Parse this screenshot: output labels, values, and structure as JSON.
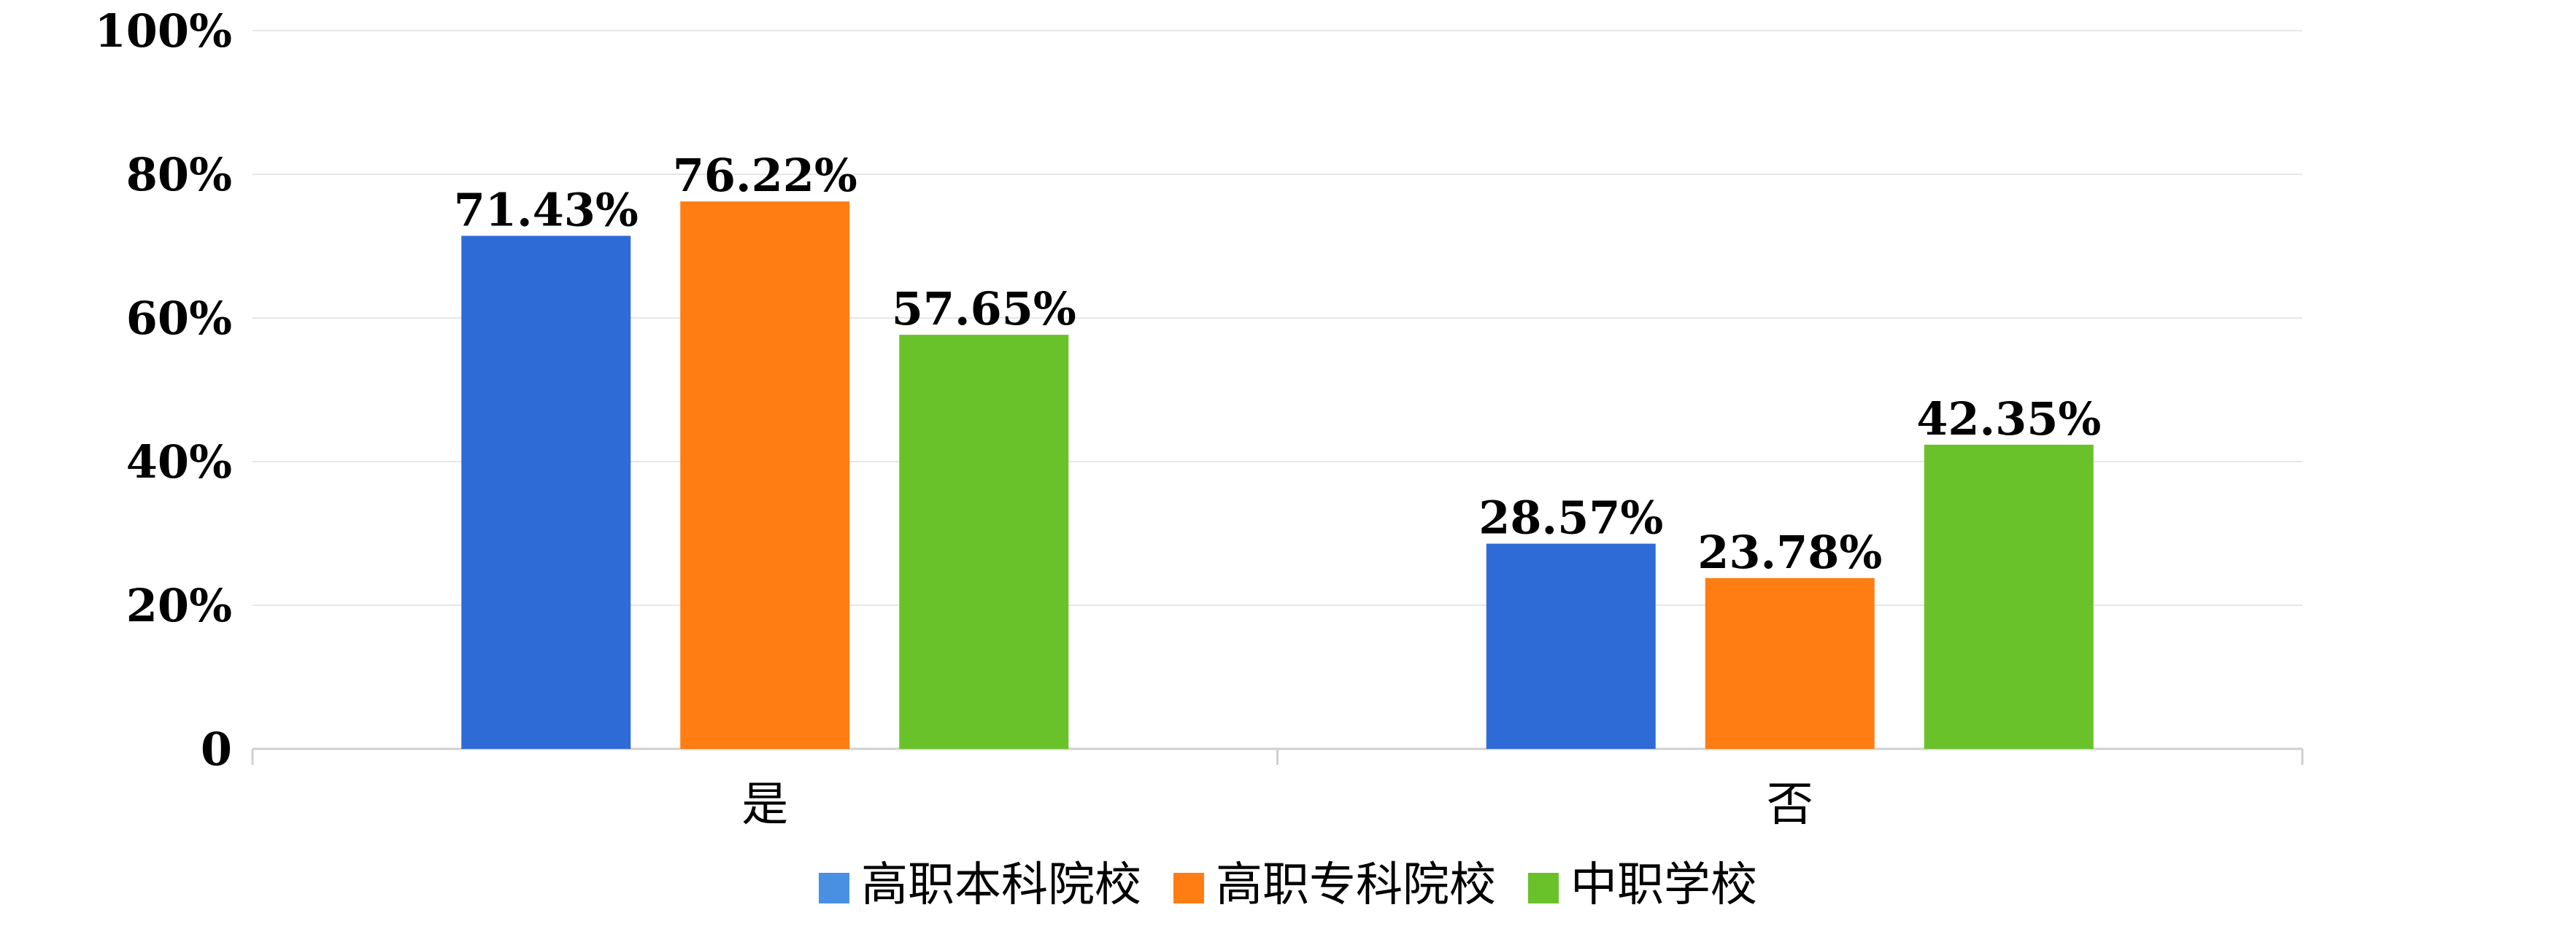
{
  "chart_data": {
    "type": "bar",
    "categories": [
      "是",
      "否"
    ],
    "series": [
      {
        "name": "高职本科院校",
        "values": [
          71.43,
          28.57
        ],
        "labels": [
          "71.43%",
          "28.57%"
        ],
        "color": "#2f6bd6"
      },
      {
        "name": "高职专科院校",
        "values": [
          76.22,
          23.78
        ],
        "labels": [
          "76.22%",
          "23.78%"
        ],
        "color": "#ff7d12"
      },
      {
        "name": "中职学校",
        "values": [
          57.65,
          42.35
        ],
        "labels": [
          "57.65%",
          "42.35%"
        ],
        "color": "#6ac22a"
      }
    ],
    "legend_swatch_colors": [
      "#4a90e2",
      "#ff7d12",
      "#6ac22a"
    ],
    "y_ticks": [
      {
        "value": 0,
        "label": "0"
      },
      {
        "value": 20,
        "label": "20%"
      },
      {
        "value": 40,
        "label": "40%"
      },
      {
        "value": 60,
        "label": "60%"
      },
      {
        "value": 80,
        "label": "80%"
      },
      {
        "value": 100,
        "label": "100%"
      }
    ],
    "ylim": [
      0,
      100
    ],
    "grid": true,
    "legend_position": "bottom-center",
    "title": "",
    "xlabel": "",
    "ylabel": ""
  }
}
